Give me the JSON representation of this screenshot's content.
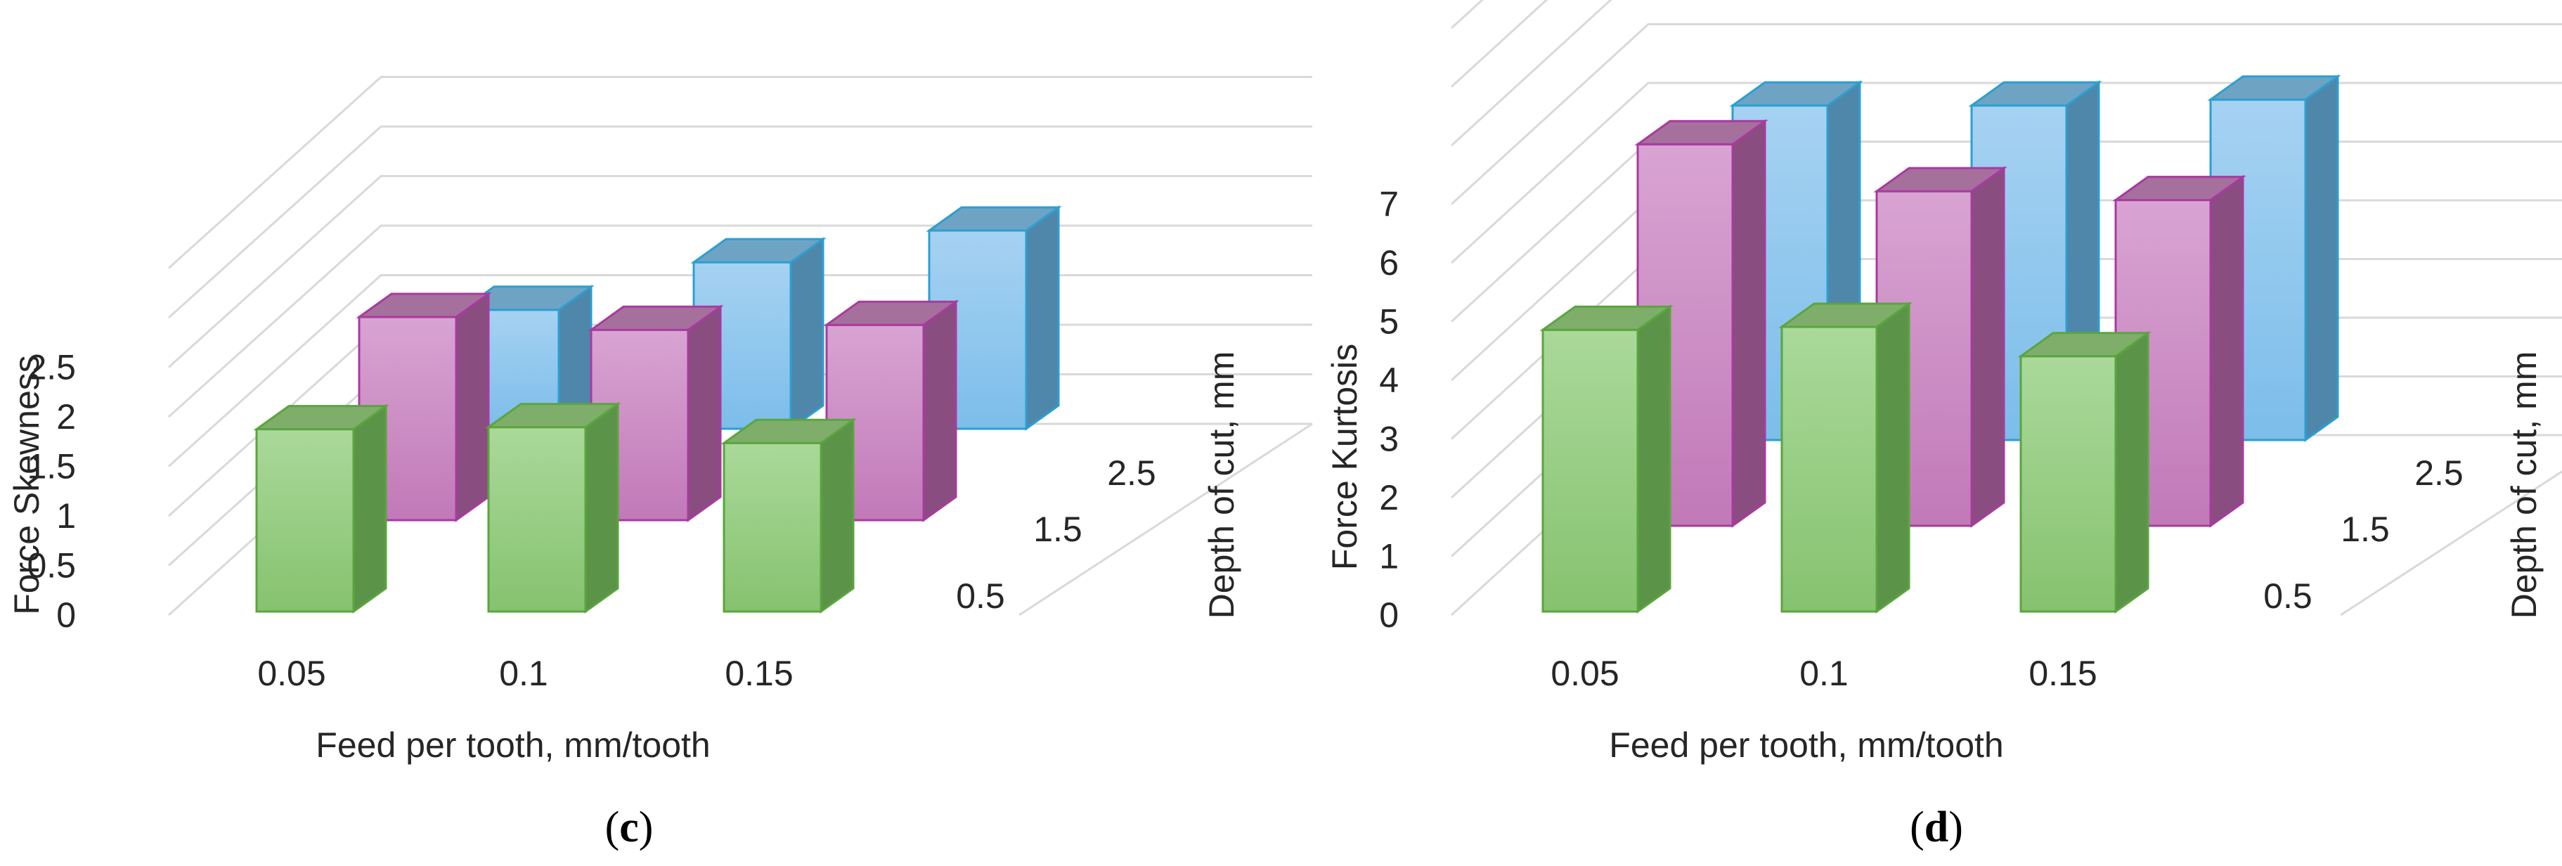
{
  "colors": {
    "depth_0_5": {
      "front_top": "#aad99a",
      "front_bottom": "#86c26f",
      "side": "#5b9448",
      "top": "#7fae6b",
      "stroke": "#5aa53e"
    },
    "depth_1_5": {
      "front_top": "#d8a4d2",
      "front_bottom": "#c179b8",
      "side": "#8a4d7f",
      "top": "#a6709c",
      "stroke": "#a83aa0"
    },
    "depth_2_5": {
      "front_top": "#a6d2f2",
      "front_bottom": "#7cbdea",
      "side": "#4f87aa",
      "top": "#6fa3c4",
      "stroke": "#2c9fd1"
    },
    "grid": "#d9d9d9"
  },
  "chart_data": [
    {
      "panel": "c",
      "type": "bar3d",
      "ylabel": "Force Skewness",
      "xlabel": "Feed per tooth, mm/tooth",
      "zlabel": "Depth of cut, mm",
      "categories": [
        "0.05",
        "0.1",
        "0.15"
      ],
      "depths": [
        "0.5",
        "1.5",
        "2.5"
      ],
      "y_ticks": [
        "0",
        "0.5",
        "1",
        "1.5",
        "2",
        "2.5"
      ],
      "ylim": [
        0,
        3.5
      ],
      "series": [
        {
          "name": "0.5",
          "values": [
            1.84,
            1.86,
            1.7
          ]
        },
        {
          "name": "1.5",
          "values": [
            2.05,
            1.92,
            1.97
          ]
        },
        {
          "name": "2.5",
          "values": [
            1.2,
            1.68,
            2.0
          ]
        }
      ]
    },
    {
      "panel": "d",
      "type": "bar3d",
      "ylabel": "Force Kurtosis",
      "xlabel": "Feed per tooth, mm/tooth",
      "zlabel": "Depth of cut, mm",
      "categories": [
        "0.05",
        "0.1",
        "0.15"
      ],
      "depths": [
        "0.5",
        "1.5",
        "2.5"
      ],
      "y_ticks": [
        "0",
        "1",
        "2",
        "3",
        "4",
        "5",
        "6",
        "7"
      ],
      "ylim": [
        0,
        10
      ],
      "series": [
        {
          "name": "0.5",
          "values": [
            4.8,
            4.85,
            4.35
          ]
        },
        {
          "name": "1.5",
          "values": [
            6.5,
            5.7,
            5.55
          ]
        },
        {
          "name": "2.5",
          "values": [
            5.7,
            5.7,
            5.8
          ]
        }
      ]
    }
  ]
}
